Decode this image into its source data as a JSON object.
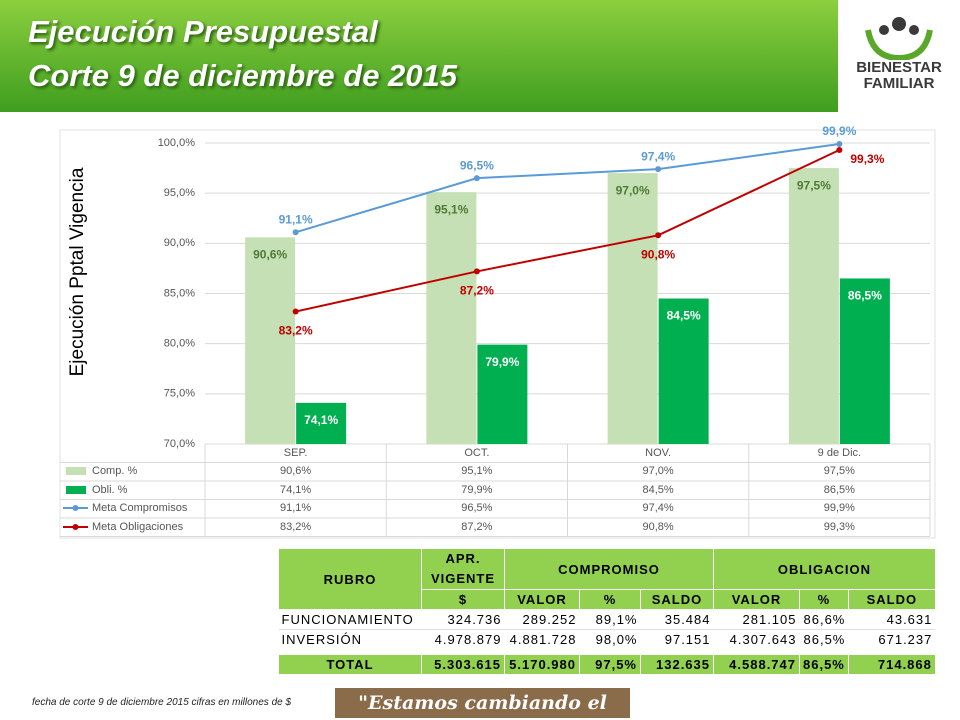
{
  "header": {
    "title_line1": "Ejecución Presupuestal",
    "title_line2": "Corte 9 de diciembre de 2015",
    "logo_line1": "BIENESTAR",
    "logo_line2": "FAMILIAR"
  },
  "chart_data": {
    "type": "combo",
    "y_axis_label": "Ejecución Pptal Vigencia",
    "categories": [
      "SEP.",
      "OCT.",
      "NOV.",
      "9 de Dic."
    ],
    "ylim": [
      70,
      100
    ],
    "yticks": [
      {
        "value": 70,
        "label": "70,0%"
      },
      {
        "value": 75,
        "label": "75,0%"
      },
      {
        "value": 80,
        "label": "80,0%"
      },
      {
        "value": 85,
        "label": "85,0%"
      },
      {
        "value": 90,
        "label": "90,0%"
      },
      {
        "value": 95,
        "label": "95,0%"
      },
      {
        "value": 100,
        "label": "100,0%"
      }
    ],
    "grid": true,
    "series": [
      {
        "name": "Comp. %",
        "kind": "bar",
        "color": "#c5e0b4",
        "values": [
          90.6,
          95.1,
          97.0,
          97.5
        ],
        "value_labels": [
          "90,6%",
          "95,1%",
          "97,0%",
          "97,5%"
        ]
      },
      {
        "name": "Obli. %",
        "kind": "bar",
        "color": "#00b050",
        "values": [
          74.1,
          79.9,
          84.5,
          86.5
        ],
        "value_labels": [
          "74,1%",
          "79,9%",
          "84,5%",
          "86,5%"
        ]
      },
      {
        "name": "Meta Compromisos",
        "kind": "line",
        "color": "#5b9bd5",
        "values": [
          91.1,
          96.5,
          97.4,
          99.9
        ],
        "value_labels": [
          "91,1%",
          "96,5%",
          "97,4%",
          "99,9%"
        ]
      },
      {
        "name": "Meta Obligaciones",
        "kind": "line",
        "color": "#c00000",
        "values": [
          83.2,
          87.2,
          90.8,
          99.3
        ],
        "value_labels": [
          "83,2%",
          "87,2%",
          "90,8%",
          "99,3%"
        ]
      }
    ]
  },
  "table": {
    "header": [
      "RUBRO",
      "APR. VIGENTE",
      "COMPROMISO",
      "OBLIGACION"
    ],
    "subheader": [
      "$",
      "VALOR",
      "%",
      "SALDO",
      "VALOR",
      "%",
      "SALDO"
    ],
    "rows": [
      [
        "FUNCIONAMIENTO",
        "324.736",
        "289.252",
        "89,1%",
        "35.484",
        "281.105",
        "86,6%",
        "43.631"
      ],
      [
        "INVERSIÓN",
        "4.978.879",
        "4.881.728",
        "98,0%",
        "97.151",
        "4.307.643",
        "86,5%",
        "671.237"
      ],
      [
        "TOTAL",
        "5.303.615",
        "5.170.980",
        "97,5%",
        "132.635",
        "4.588.747",
        "86,5%",
        "714.868"
      ]
    ]
  },
  "footer": {
    "note": "fecha de corte 9 de diciembre 2015 cifras en millones de $",
    "slogan": "\"Estamos cambiando el mundo\""
  }
}
